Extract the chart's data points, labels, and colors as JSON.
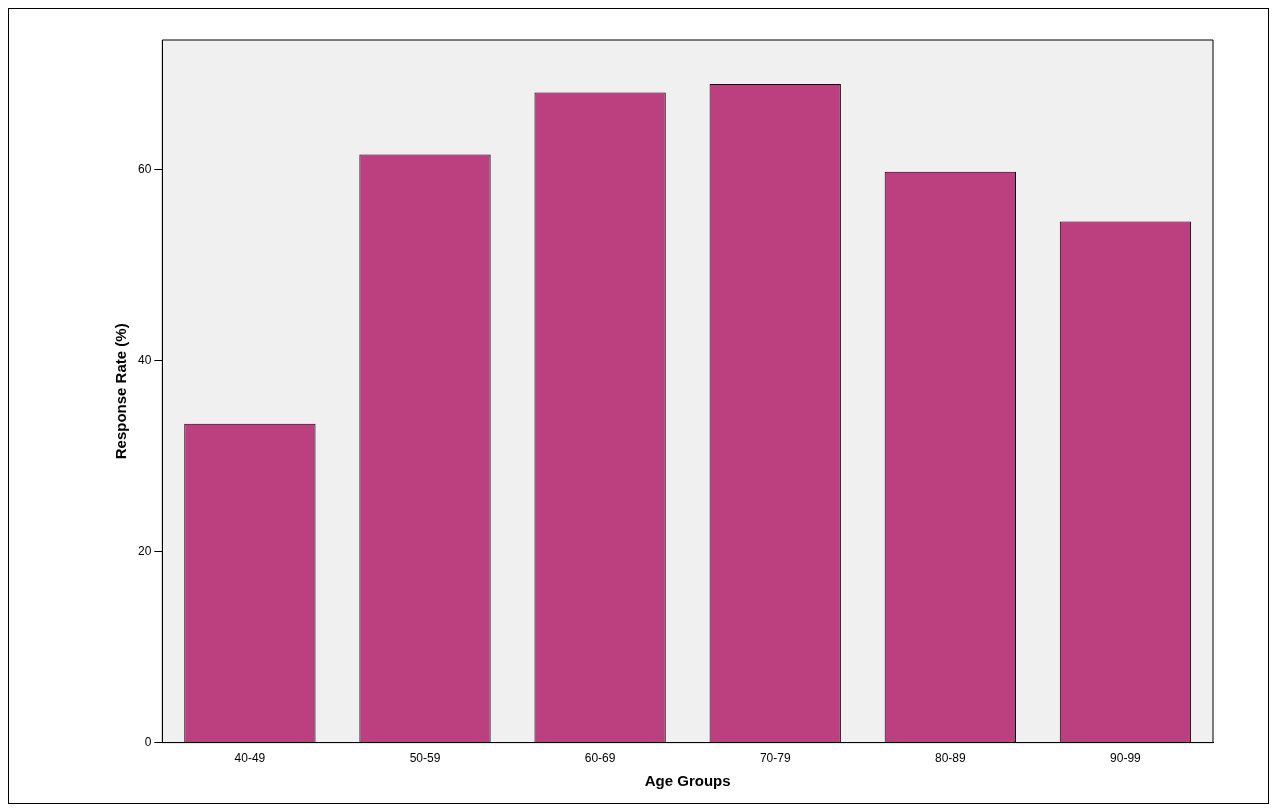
{
  "chart_data": {
    "type": "bar",
    "xlabel": "Age Groups",
    "ylabel": "Response Rate (%)",
    "categories": [
      "40-49",
      "50-59",
      "60-69",
      "70-79",
      "80-89",
      "90-99"
    ],
    "values": [
      33.4,
      61.6,
      68.1,
      69.0,
      59.8,
      54.6
    ],
    "color": "#bc4080",
    "ylim": [
      0,
      73.6
    ],
    "yticks": [
      0,
      20,
      40,
      60
    ],
    "grid": false,
    "legend": false
  }
}
